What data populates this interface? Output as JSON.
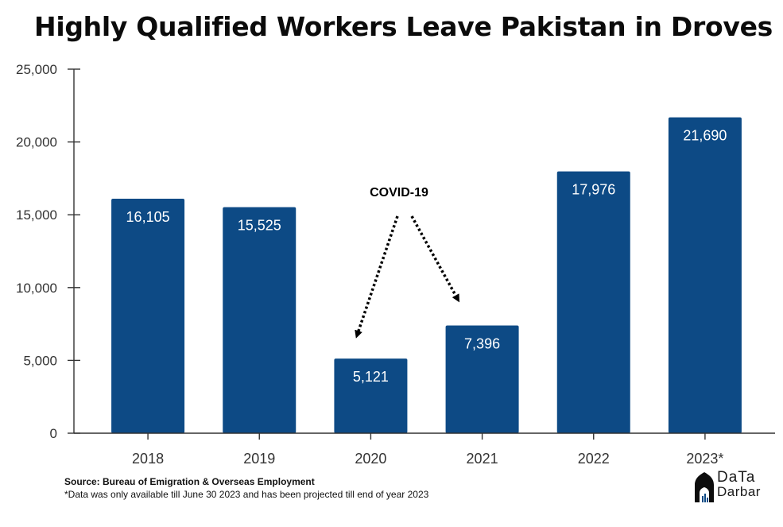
{
  "chart_data": {
    "type": "bar",
    "title": "Highly Qualified Workers Leave Pakistan in Droves",
    "categories": [
      "2018",
      "2019",
      "2020",
      "2021",
      "2022",
      "2023*"
    ],
    "values": [
      16105,
      15525,
      5121,
      7396,
      17976,
      21690
    ],
    "value_labels": [
      "16,105",
      "15,525",
      "5,121",
      "7,396",
      "17,976",
      "21,690"
    ],
    "yticks": [
      0,
      5000,
      10000,
      15000,
      20000,
      25000
    ],
    "ytick_labels": [
      "0",
      "5,000",
      "10,000",
      "15,000",
      "20,000",
      "25,000"
    ],
    "ylim": [
      0,
      25000
    ],
    "xlabel": "",
    "ylabel": "",
    "grid": false,
    "bar_color": "#0d4a85",
    "annotation": {
      "text": "COVID-19",
      "arrows_to": [
        "2020",
        "2021"
      ]
    }
  },
  "source": "Source: Bureau of Emigration & Overseas Employment",
  "footnote": "*Data was only available till June 30 2023 and has been projected till end of year 2023",
  "logo": {
    "top": "DaTa",
    "bottom": "Darbar"
  }
}
